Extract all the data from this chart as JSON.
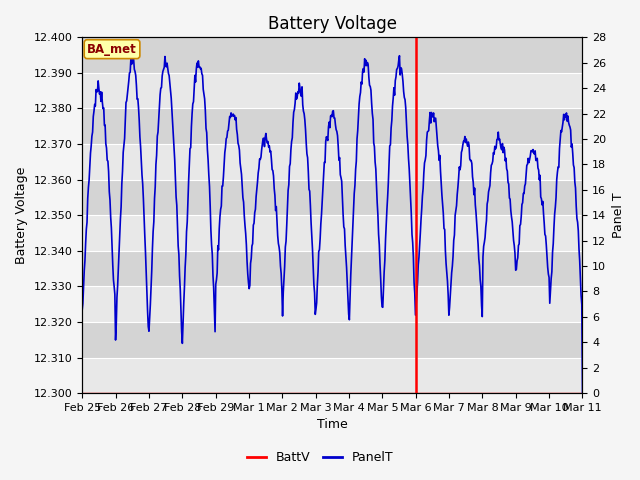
{
  "title": "Battery Voltage",
  "xlabel": "Time",
  "ylabel_left": "Battery Voltage",
  "ylabel_right": "Panel T",
  "ylim_left": [
    12.3,
    12.4
  ],
  "ylim_right": [
    0,
    28
  ],
  "yticks_left": [
    12.3,
    12.31,
    12.32,
    12.33,
    12.34,
    12.35,
    12.36,
    12.37,
    12.38,
    12.39,
    12.4
  ],
  "yticks_right": [
    0,
    2,
    4,
    6,
    8,
    10,
    12,
    14,
    16,
    18,
    20,
    22,
    24,
    26,
    28
  ],
  "xtick_labels": [
    "Feb 25",
    "Feb 26",
    "Feb 27",
    "Feb 28",
    "Feb 29",
    "Mar 1",
    "Mar 2",
    "Mar 3",
    "Mar 4",
    "Mar 5",
    "Mar 6",
    "Mar 7",
    "Mar 8",
    "Mar 9",
    "Mar 10",
    "Mar 11"
  ],
  "annotation_label": "BA_met",
  "bg_color": "#dcdcdc",
  "line_color_battv": "#ff0000",
  "line_color_panelt": "#0000cc",
  "title_fontsize": 12,
  "axis_label_fontsize": 9,
  "tick_fontsize": 8,
  "legend_fontsize": 9,
  "figsize": [
    6.4,
    4.8
  ],
  "dpi": 100
}
